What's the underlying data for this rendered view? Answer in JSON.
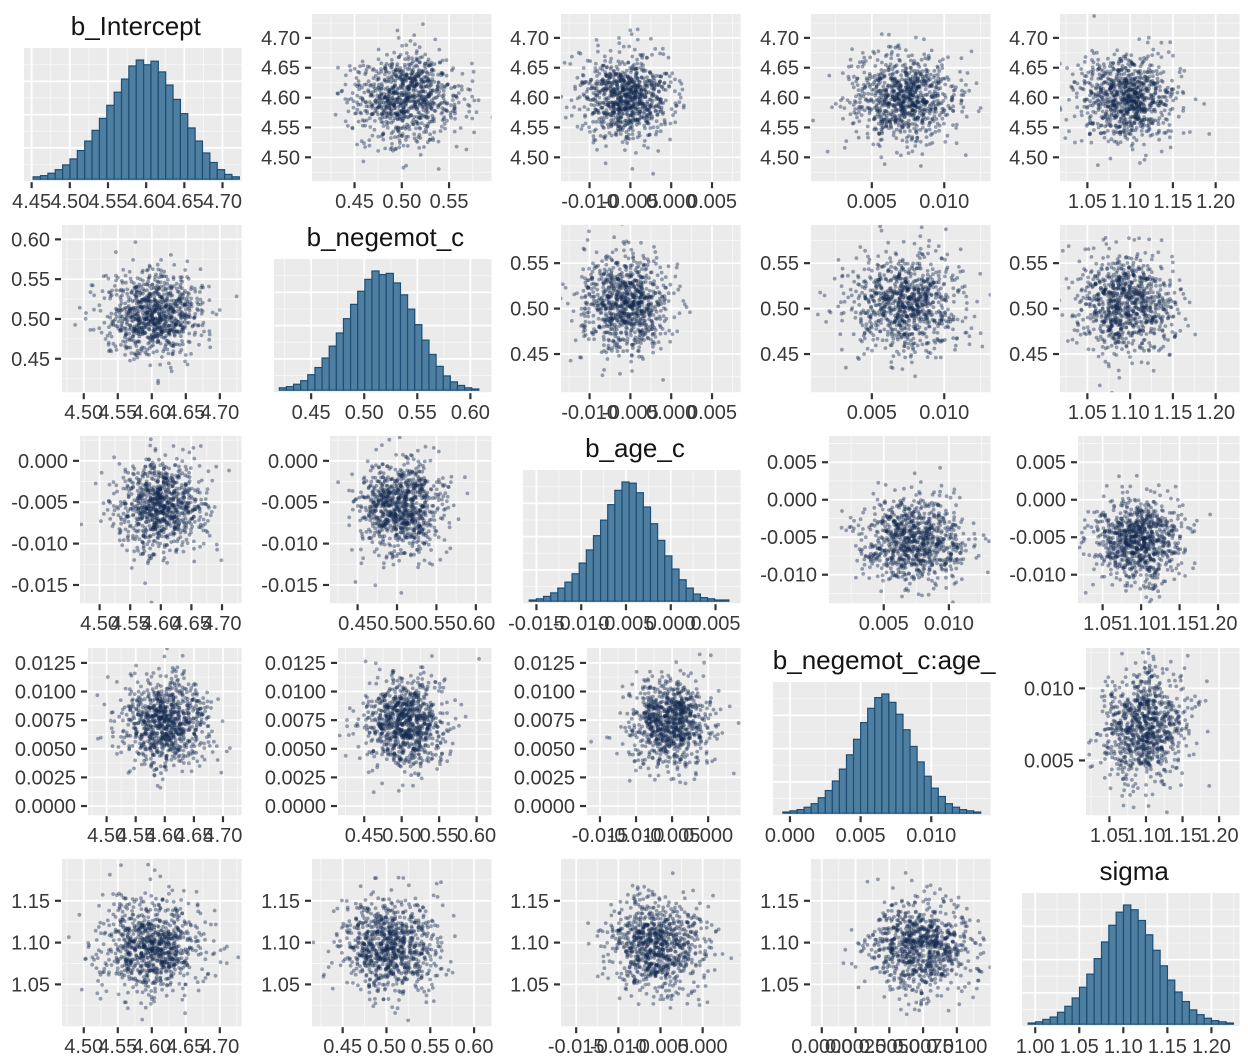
{
  "figure": {
    "kind": "posterior pairs plot (5x5 matrix of MCMC draws)",
    "background": "#FFFFFF",
    "panel_bg": "#EBEBEB",
    "grid_major_color": "#FFFFFF",
    "grid_minor_color": "#F7F7F7",
    "tick_mark_color": "#333333",
    "tick_label_color": "#383838",
    "title_color": "#141414",
    "point_color": "#13294E",
    "point_opacity": 0.42,
    "hist_fill": "#4E7FA1",
    "hist_stroke": "#1D4E75"
  },
  "chart_data": {
    "type": "pairs-matrix",
    "description": "Scatterplot matrix of posterior draws: diagonal = histograms of each parameter, off-diagonal = pairwise scatterplots. No overall title, no legend.",
    "points_per_panel": 900,
    "parameters": [
      {
        "name": "b_Intercept",
        "center": 4.6,
        "sd": 0.036
      },
      {
        "name": "b_negemot_c",
        "center": 0.505,
        "sd": 0.027
      },
      {
        "name": "b_age_c",
        "center": -0.0055,
        "sd": 0.0028
      },
      {
        "name": "b_negemot_c:age_c",
        "center": 0.0073,
        "sd": 0.0019
      },
      {
        "name": "sigma",
        "center": 1.096,
        "sd": 0.028
      }
    ],
    "histograms": {
      "b_Intercept": {
        "from": 4.452,
        "to": 4.722,
        "heights": [
          0.02,
          0.03,
          0.05,
          0.08,
          0.12,
          0.17,
          0.24,
          0.32,
          0.41,
          0.51,
          0.62,
          0.73,
          0.84,
          0.95,
          1.0,
          0.96,
          0.99,
          0.9,
          0.79,
          0.67,
          0.55,
          0.43,
          0.32,
          0.22,
          0.14,
          0.08,
          0.04,
          0.02
        ]
      },
      "b_negemot_c": {
        "from": 0.42,
        "to": 0.608,
        "heights": [
          0.02,
          0.03,
          0.05,
          0.08,
          0.13,
          0.19,
          0.27,
          0.37,
          0.48,
          0.6,
          0.72,
          0.83,
          0.93,
          1.0,
          0.97,
          0.98,
          0.9,
          0.8,
          0.68,
          0.55,
          0.42,
          0.3,
          0.2,
          0.12,
          0.07,
          0.04,
          0.02,
          0.01
        ]
      },
      "b_age_c": {
        "from": -0.0158,
        "to": 0.0065,
        "heights": [
          0.01,
          0.02,
          0.04,
          0.07,
          0.11,
          0.16,
          0.23,
          0.32,
          0.43,
          0.55,
          0.68,
          0.81,
          0.93,
          1.0,
          0.99,
          0.91,
          0.79,
          0.65,
          0.51,
          0.38,
          0.27,
          0.18,
          0.11,
          0.06,
          0.03,
          0.02,
          0.01,
          0.01
        ]
      },
      "b_negemot_c:age_c": {
        "from": -0.0005,
        "to": 0.0135,
        "heights": [
          0.01,
          0.02,
          0.03,
          0.05,
          0.08,
          0.13,
          0.19,
          0.27,
          0.37,
          0.49,
          0.62,
          0.76,
          0.88,
          0.97,
          1.0,
          0.93,
          0.83,
          0.7,
          0.56,
          0.43,
          0.31,
          0.21,
          0.14,
          0.08,
          0.05,
          0.03,
          0.02,
          0.01
        ]
      },
      "sigma": {
        "from": 0.992,
        "to": 1.225,
        "heights": [
          0.01,
          0.02,
          0.04,
          0.06,
          0.1,
          0.15,
          0.22,
          0.31,
          0.42,
          0.55,
          0.69,
          0.83,
          0.94,
          1.0,
          0.96,
          0.87,
          0.75,
          0.62,
          0.49,
          0.37,
          0.27,
          0.19,
          0.12,
          0.08,
          0.05,
          0.03,
          0.02,
          0.01
        ]
      }
    },
    "axes": {
      "int6": {
        "dom": [
          4.44,
          4.725
        ],
        "ticks": [
          {
            "v": 4.45,
            "l": "4.45"
          },
          {
            "v": 4.5,
            "l": "4.50"
          },
          {
            "v": 4.55,
            "l": "4.55"
          },
          {
            "v": 4.6,
            "l": "4.60"
          },
          {
            "v": 4.65,
            "l": "4.65"
          },
          {
            "v": 4.7,
            "l": "4.70"
          }
        ]
      },
      "int5": {
        "dom": [
          4.468,
          4.732
        ],
        "ticks": [
          {
            "v": 4.5,
            "l": "4.50"
          },
          {
            "v": 4.55,
            "l": "4.55"
          },
          {
            "v": 4.6,
            "l": "4.60"
          },
          {
            "v": 4.65,
            "l": "4.65"
          },
          {
            "v": 4.7,
            "l": "4.70"
          }
        ]
      },
      "int_y": {
        "dom": [
          4.46,
          4.74
        ],
        "ticks": [
          {
            "v": 4.5,
            "l": "4.50"
          },
          {
            "v": 4.55,
            "l": "4.55"
          },
          {
            "v": 4.6,
            "l": "4.60"
          },
          {
            "v": 4.65,
            "l": "4.65"
          },
          {
            "v": 4.7,
            "l": "4.70"
          }
        ]
      },
      "neg3": {
        "dom": [
          0.405,
          0.595
        ],
        "ticks": [
          {
            "v": 0.45,
            "l": "0.45"
          },
          {
            "v": 0.5,
            "l": "0.50"
          },
          {
            "v": 0.55,
            "l": "0.55"
          }
        ]
      },
      "neg4": {
        "dom": [
          0.415,
          0.62
        ],
        "ticks": [
          {
            "v": 0.45,
            "l": "0.45"
          },
          {
            "v": 0.5,
            "l": "0.50"
          },
          {
            "v": 0.55,
            "l": "0.55"
          },
          {
            "v": 0.6,
            "l": "0.60"
          }
        ]
      },
      "neg4y": {
        "dom": [
          0.408,
          0.618
        ],
        "ticks": [
          {
            "v": 0.45,
            "l": "0.45"
          },
          {
            "v": 0.5,
            "l": "0.50"
          },
          {
            "v": 0.55,
            "l": "0.55"
          },
          {
            "v": 0.6,
            "l": "0.60"
          }
        ]
      },
      "neg3y": {
        "dom": [
          0.408,
          0.592
        ],
        "ticks": [
          {
            "v": 0.45,
            "l": "0.45"
          },
          {
            "v": 0.5,
            "l": "0.50"
          },
          {
            "v": 0.55,
            "l": "0.55"
          }
        ]
      },
      "age4a": {
        "dom": [
          -0.0135,
          0.0085
        ],
        "ticks": [
          {
            "v": -0.01,
            "l": "-0.010"
          },
          {
            "v": -0.005,
            "l": "-0.005"
          },
          {
            "v": 0.0,
            "l": "0.000"
          },
          {
            "v": 0.005,
            "l": "0.005"
          }
        ]
      },
      "age4ay": {
        "dom": [
          -0.0172,
          0.003
        ],
        "ticks": [
          {
            "v": 0.0,
            "l": "0.000"
          },
          {
            "v": -0.005,
            "l": "-0.005"
          },
          {
            "v": -0.01,
            "l": "-0.010"
          },
          {
            "v": -0.015,
            "l": "-0.015"
          }
        ]
      },
      "age4b": {
        "dom": [
          -0.0168,
          0.0045
        ],
        "ticks": [
          {
            "v": -0.015,
            "l": "-0.015"
          },
          {
            "v": -0.01,
            "l": "-0.010"
          },
          {
            "v": -0.005,
            "l": "-0.005"
          },
          {
            "v": 0.0,
            "l": "0.000"
          }
        ]
      },
      "age4by": {
        "dom": [
          -0.0138,
          0.0085
        ],
        "ticks": [
          {
            "v": 0.005,
            "l": "0.005"
          },
          {
            "v": 0.0,
            "l": "0.000"
          },
          {
            "v": -0.005,
            "l": "-0.005"
          },
          {
            "v": -0.01,
            "l": "-0.010"
          }
        ]
      },
      "age5": {
        "dom": [
          -0.0165,
          0.0078
        ],
        "ticks": [
          {
            "v": -0.015,
            "l": "-0.015"
          },
          {
            "v": -0.01,
            "l": "-0.010"
          },
          {
            "v": -0.005,
            "l": "-0.005"
          },
          {
            "v": 0.0,
            "l": "0.000"
          },
          {
            "v": 0.005,
            "l": "0.005"
          }
        ]
      },
      "ixn2": {
        "dom": [
          0.0008,
          0.0132
        ],
        "ticks": [
          {
            "v": 0.005,
            "l": "0.005"
          },
          {
            "v": 0.01,
            "l": "0.010"
          }
        ]
      },
      "ixn2y": {
        "dom": [
          0.0012,
          0.0128
        ],
        "ticks": [
          {
            "v": 0.01,
            "l": "0.010"
          },
          {
            "v": 0.005,
            "l": "0.005"
          }
        ]
      },
      "ixn3": {
        "dom": [
          -0.0012,
          0.0142
        ],
        "ticks": [
          {
            "v": 0.0,
            "l": "0.000"
          },
          {
            "v": 0.005,
            "l": "0.005"
          },
          {
            "v": 0.01,
            "l": "0.010"
          }
        ]
      },
      "ixn5": {
        "dom": [
          -0.0008,
          0.0125
        ],
        "ticks": [
          {
            "v": 0.0,
            "l": "0.0000"
          },
          {
            "v": 0.0025,
            "l": "0.0025"
          },
          {
            "v": 0.005,
            "l": "0.0050"
          },
          {
            "v": 0.0075,
            "l": "0.0075"
          },
          {
            "v": 0.01,
            "l": "0.0100"
          }
        ]
      },
      "ixn6y": {
        "dom": [
          -0.0008,
          0.0138
        ],
        "ticks": [
          {
            "v": 0.0125,
            "l": "0.0125"
          },
          {
            "v": 0.01,
            "l": "0.0100"
          },
          {
            "v": 0.0075,
            "l": "0.0075"
          },
          {
            "v": 0.005,
            "l": "0.0050"
          },
          {
            "v": 0.0025,
            "l": "0.0025"
          },
          {
            "v": 0.0,
            "l": "0.0000"
          }
        ]
      },
      "sig4": {
        "dom": [
          1.018,
          1.228
        ],
        "ticks": [
          {
            "v": 1.05,
            "l": "1.05"
          },
          {
            "v": 1.1,
            "l": "1.10"
          },
          {
            "v": 1.15,
            "l": "1.15"
          },
          {
            "v": 1.2,
            "l": "1.20"
          }
        ]
      },
      "sig5": {
        "dom": [
          0.985,
          1.232
        ],
        "ticks": [
          {
            "v": 1.0,
            "l": "1.00"
          },
          {
            "v": 1.05,
            "l": "1.05"
          },
          {
            "v": 1.1,
            "l": "1.10"
          },
          {
            "v": 1.15,
            "l": "1.15"
          },
          {
            "v": 1.2,
            "l": "1.20"
          }
        ]
      },
      "sig3y": {
        "dom": [
          1.0,
          1.2
        ],
        "ticks": [
          {
            "v": 1.15,
            "l": "1.15"
          },
          {
            "v": 1.1,
            "l": "1.10"
          },
          {
            "v": 1.05,
            "l": "1.05"
          }
        ]
      }
    },
    "row_gutters": [
      62,
      62,
      80,
      88,
      62
    ],
    "cells": [
      {
        "r": 0,
        "c": 0,
        "kind": "hist",
        "param": "b_Intercept",
        "title": "b_Intercept",
        "x": "int6"
      },
      {
        "r": 0,
        "c": 1,
        "kind": "scatter",
        "xp": "b_negemot_c",
        "yp": "b_Intercept",
        "x": "neg3",
        "y": "int_y"
      },
      {
        "r": 0,
        "c": 2,
        "kind": "scatter",
        "xp": "b_age_c",
        "yp": "b_Intercept",
        "x": "age4a",
        "y": "int_y"
      },
      {
        "r": 0,
        "c": 3,
        "kind": "scatter",
        "xp": "b_negemot_c:age_c",
        "yp": "b_Intercept",
        "x": "ixn2",
        "y": "int_y"
      },
      {
        "r": 0,
        "c": 4,
        "kind": "scatter",
        "xp": "sigma",
        "yp": "b_Intercept",
        "x": "sig4",
        "y": "int_y"
      },
      {
        "r": 1,
        "c": 0,
        "kind": "scatter",
        "xp": "b_Intercept",
        "yp": "b_negemot_c",
        "x": "int5",
        "y": "neg4y"
      },
      {
        "r": 1,
        "c": 1,
        "kind": "hist",
        "param": "b_negemot_c",
        "title": "b_negemot_c",
        "x": "neg4"
      },
      {
        "r": 1,
        "c": 2,
        "kind": "scatter",
        "xp": "b_age_c",
        "yp": "b_negemot_c",
        "x": "age4a",
        "y": "neg3y"
      },
      {
        "r": 1,
        "c": 3,
        "kind": "scatter",
        "xp": "b_negemot_c:age_c",
        "yp": "b_negemot_c",
        "x": "ixn2",
        "y": "neg3y"
      },
      {
        "r": 1,
        "c": 4,
        "kind": "scatter",
        "xp": "sigma",
        "yp": "b_negemot_c",
        "x": "sig4",
        "y": "neg3y"
      },
      {
        "r": 2,
        "c": 0,
        "kind": "scatter",
        "xp": "b_Intercept",
        "yp": "b_age_c",
        "x": "int5",
        "y": "age4ay"
      },
      {
        "r": 2,
        "c": 1,
        "kind": "scatter",
        "xp": "b_negemot_c",
        "yp": "b_age_c",
        "x": "neg4",
        "y": "age4ay"
      },
      {
        "r": 2,
        "c": 2,
        "kind": "hist",
        "param": "b_age_c",
        "title": "b_age_c",
        "x": "age5"
      },
      {
        "r": 2,
        "c": 3,
        "kind": "scatter",
        "xp": "b_negemot_c:age_c",
        "yp": "b_age_c",
        "x": "ixn2",
        "y": "age4by"
      },
      {
        "r": 2,
        "c": 4,
        "kind": "scatter",
        "xp": "sigma",
        "yp": "b_age_c",
        "x": "sig4",
        "y": "age4by"
      },
      {
        "r": 3,
        "c": 0,
        "kind": "scatter",
        "xp": "b_Intercept",
        "yp": "b_negemot_c:age_c",
        "x": "int5",
        "y": "ixn6y"
      },
      {
        "r": 3,
        "c": 1,
        "kind": "scatter",
        "xp": "b_negemot_c",
        "yp": "b_negemot_c:age_c",
        "x": "neg4",
        "y": "ixn6y"
      },
      {
        "r": 3,
        "c": 2,
        "kind": "scatter",
        "xp": "b_age_c",
        "yp": "b_negemot_c:age_c",
        "x": "age4b",
        "y": "ixn6y"
      },
      {
        "r": 3,
        "c": 3,
        "kind": "hist",
        "param": "b_negemot_c:age_c",
        "title": "b_negemot_c:age_c",
        "x": "ixn3"
      },
      {
        "r": 3,
        "c": 4,
        "kind": "scatter",
        "xp": "sigma",
        "yp": "b_negemot_c:age_c",
        "x": "sig4",
        "y": "ixn2y"
      },
      {
        "r": 4,
        "c": 0,
        "kind": "scatter",
        "xp": "b_Intercept",
        "yp": "sigma",
        "x": "int5",
        "y": "sig3y"
      },
      {
        "r": 4,
        "c": 1,
        "kind": "scatter",
        "xp": "b_negemot_c",
        "yp": "sigma",
        "x": "neg4",
        "y": "sig3y"
      },
      {
        "r": 4,
        "c": 2,
        "kind": "scatter",
        "xp": "b_age_c",
        "yp": "sigma",
        "x": "age4b",
        "y": "sig3y"
      },
      {
        "r": 4,
        "c": 3,
        "kind": "scatter",
        "xp": "b_negemot_c:age_c",
        "yp": "sigma",
        "x": "ixn5",
        "y": "sig3y"
      },
      {
        "r": 4,
        "c": 4,
        "kind": "hist",
        "param": "sigma",
        "title": "sigma",
        "x": "sig5"
      }
    ]
  }
}
